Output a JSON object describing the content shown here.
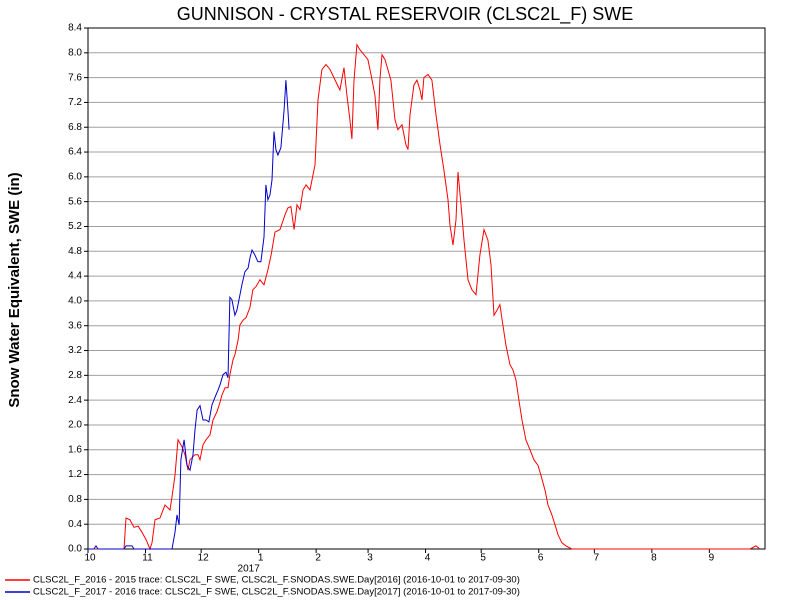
{
  "chart_data": {
    "type": "line",
    "title": "GUNNISON - CRYSTAL RESERVOIR (CLSC2L_F) SWE",
    "y_label": "Snow Water Equivalent, SWE (in)",
    "x_year_label": "2017",
    "xlim": [
      0,
      365
    ],
    "xticks": [
      {
        "value": 0,
        "label": "10"
      },
      {
        "value": 31,
        "label": "11"
      },
      {
        "value": 61,
        "label": "12"
      },
      {
        "value": 92,
        "label": "1"
      },
      {
        "value": 123,
        "label": "2"
      },
      {
        "value": 151,
        "label": "3"
      },
      {
        "value": 182,
        "label": "4"
      },
      {
        "value": 212,
        "label": "5"
      },
      {
        "value": 243,
        "label": "6"
      },
      {
        "value": 273,
        "label": "7"
      },
      {
        "value": 304,
        "label": "8"
      },
      {
        "value": 335,
        "label": "9"
      }
    ],
    "ylim": [
      0,
      8.4
    ],
    "yticks": [
      {
        "value": 0,
        "label": "0.0"
      },
      0.4,
      0.8,
      1.2,
      1.6,
      {
        "value": 2,
        "label": "2.0"
      },
      2.4,
      2.8,
      3.2,
      3.6,
      {
        "value": 4,
        "label": "4.0"
      },
      4.4,
      4.8,
      5.2,
      5.6,
      {
        "value": 6,
        "label": "6.0"
      },
      6.4,
      6.8,
      7.2,
      7.6,
      {
        "value": 8,
        "label": "8.0"
      },
      8.4
    ],
    "grid": true,
    "series": [
      {
        "name": "CLSC2L_F_2016 - 2015 trace: CLSC2L_F SWE, CLSC2L_F.SNODAS.SWE.Day[2016] (2016-10-01 to 2017-09-30)",
        "color": "#ff0000",
        "x": [
          0,
          19.4,
          20.5,
          22.6,
          24.8,
          27.0,
          29.1,
          31.3,
          33.4,
          34.5,
          36.1,
          38.8,
          41.5,
          44.2,
          45.3,
          46.9,
          48.5,
          50.7,
          52.3,
          53.9,
          55.0,
          57.7,
          59.3,
          60.4,
          62.0,
          63.6,
          65.8,
          67.4,
          69.5,
          71.2,
          72.2,
          73.9,
          75.5,
          76.5,
          78.2,
          79.2,
          80.9,
          81.9,
          83.6,
          85.2,
          87.3,
          88.9,
          90.6,
          92.7,
          94.9,
          97.0,
          98.7,
          100.8,
          103.5,
          106.2,
          107.8,
          109.4,
          111.1,
          112.7,
          114.3,
          115.9,
          117.6,
          119.7,
          122.4,
          124.0,
          126.1,
          128.3,
          130.5,
          133.2,
          135.8,
          138.0,
          139.6,
          141.2,
          142.3,
          143.4,
          145.0,
          146.6,
          148.8,
          150.9,
          152.6,
          154.7,
          156.3,
          157.4,
          158.5,
          160.1,
          161.7,
          163.3,
          165.5,
          167.1,
          169.3,
          171.4,
          172.5,
          173.6,
          175.7,
          177.4,
          179.0,
          180.1,
          181.1,
          183.3,
          185.4,
          187.6,
          189.8,
          191.9,
          194.1,
          195.1,
          196.8,
          198.4,
          199.5,
          201.1,
          202.7,
          204.9,
          207.0,
          209.2,
          211.3,
          213.5,
          215.6,
          217.3,
          218.9,
          220.5,
          222.1,
          223.7,
          225.3,
          227.5,
          229.1,
          230.7,
          232.3,
          234.0,
          236.1,
          238.3,
          240.4,
          242.6,
          244.2,
          246.4,
          248.0,
          250.1,
          251.8,
          253.4,
          255.5,
          257.7,
          260.9,
          356.9,
          360.1,
          362.3
        ],
        "values": [
          0,
          0,
          0.5,
          0.47,
          0.35,
          0.37,
          0.27,
          0.15,
          0,
          0.1,
          0.47,
          0.5,
          0.71,
          0.63,
          0.84,
          1.19,
          1.76,
          1.65,
          1.52,
          1.27,
          1.44,
          1.52,
          1.52,
          1.44,
          1.68,
          1.76,
          1.84,
          2.08,
          2.21,
          2.37,
          2.48,
          2.6,
          2.6,
          2.81,
          3.05,
          3.13,
          3.37,
          3.61,
          3.69,
          3.73,
          3.89,
          4.18,
          4.23,
          4.34,
          4.26,
          4.5,
          4.74,
          5.11,
          5.15,
          5.39,
          5.5,
          5.52,
          5.15,
          5.55,
          5.47,
          5.79,
          5.87,
          5.79,
          6.19,
          7.24,
          7.73,
          7.81,
          7.73,
          7.56,
          7.4,
          7.76,
          7.32,
          6.92,
          6.61,
          7.56,
          8.13,
          8.05,
          7.97,
          7.89,
          7.65,
          7.32,
          6.76,
          7.56,
          7.97,
          7.89,
          7.73,
          7.56,
          6.92,
          6.76,
          6.84,
          6.52,
          6.44,
          7.0,
          7.48,
          7.56,
          7.4,
          7.24,
          7.6,
          7.65,
          7.56,
          7.0,
          6.52,
          6.11,
          5.63,
          5.23,
          4.9,
          5.31,
          6.08,
          5.55,
          4.98,
          4.34,
          4.18,
          4.1,
          4.74,
          5.15,
          4.98,
          4.58,
          3.77,
          3.85,
          3.94,
          3.61,
          3.29,
          2.97,
          2.89,
          2.73,
          2.4,
          2.08,
          1.76,
          1.6,
          1.44,
          1.35,
          1.19,
          0.95,
          0.71,
          0.55,
          0.39,
          0.23,
          0.1,
          0.05,
          0,
          0,
          0.05,
          0
        ]
      },
      {
        "name": "CLSC2L_F_2017 - 2016 trace: CLSC2L_F SWE, CLSC2L_F.SNODAS.SWE.Day[2017] (2016-10-01 to 2017-09-30)",
        "color": "#0000cc",
        "x": [
          0,
          3.2,
          4.3,
          5.4,
          19.4,
          20.5,
          23.7,
          24.8,
          45.3,
          46.9,
          48.0,
          49.1,
          50.1,
          51.8,
          53.4,
          55.0,
          56.6,
          57.7,
          58.8,
          60.4,
          62.0,
          63.6,
          65.2,
          66.8,
          68.5,
          70.1,
          71.2,
          72.8,
          74.4,
          75.5,
          76.5,
          77.6,
          79.2,
          80.3,
          81.4,
          83.0,
          84.6,
          86.3,
          87.3,
          88.4,
          90.0,
          91.6,
          93.2,
          94.9,
          95.9,
          97.0,
          98.1,
          99.2,
          100.3,
          101.3,
          102.4,
          104.0,
          105.7,
          106.7,
          107.8,
          108.4
        ],
        "values": [
          0,
          0,
          0.05,
          0,
          0,
          0.05,
          0.05,
          0,
          0,
          0.27,
          0.55,
          0.39,
          1.44,
          1.76,
          1.35,
          1.27,
          1.52,
          1.92,
          2.24,
          2.31,
          2.08,
          2.08,
          2.05,
          2.32,
          2.45,
          2.56,
          2.65,
          2.81,
          2.85,
          2.76,
          4.06,
          4.02,
          3.77,
          3.85,
          4.02,
          4.26,
          4.47,
          4.53,
          4.69,
          4.82,
          4.74,
          4.63,
          4.63,
          5.03,
          5.87,
          5.63,
          5.71,
          5.95,
          6.73,
          6.44,
          6.35,
          6.47,
          7.08,
          7.56,
          7.08,
          6.76
        ]
      }
    ]
  }
}
